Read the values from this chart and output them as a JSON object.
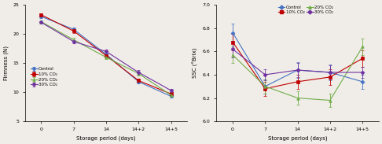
{
  "x_labels": [
    "0",
    "7",
    "14",
    "14+2",
    "14+5"
  ],
  "x_positions": [
    0,
    1,
    2,
    3,
    4
  ],
  "firmness": {
    "Control": {
      "y": [
        23.0,
        20.8,
        16.5,
        11.8,
        9.3
      ],
      "yerr": [
        0.25,
        0.3,
        0.25,
        0.35,
        0.25
      ]
    },
    "10% CO2": {
      "y": [
        23.3,
        20.5,
        16.3,
        12.0,
        9.7
      ],
      "yerr": [
        0.25,
        0.3,
        0.25,
        0.35,
        0.25
      ]
    },
    "20% CO2": {
      "y": [
        22.1,
        19.0,
        16.0,
        13.2,
        9.5
      ],
      "yerr": [
        0.25,
        0.3,
        0.25,
        0.35,
        0.25
      ]
    },
    "30% CO2": {
      "y": [
        22.0,
        18.7,
        17.0,
        13.4,
        10.3
      ],
      "yerr": [
        0.25,
        0.3,
        0.35,
        0.35,
        0.25
      ]
    }
  },
  "firmness_ylim": [
    5,
    25
  ],
  "firmness_yticks": [
    5,
    10,
    15,
    20,
    25
  ],
  "firmness_ylabel": "Firmness (N)",
  "ssc": {
    "Control": {
      "y": [
        6.76,
        6.3,
        6.44,
        6.42,
        6.34
      ],
      "yerr": [
        0.08,
        0.06,
        0.07,
        0.07,
        0.06
      ]
    },
    "10% CO2": {
      "y": [
        6.68,
        6.28,
        6.34,
        6.38,
        6.54
      ],
      "yerr": [
        0.07,
        0.06,
        0.06,
        0.07,
        0.07
      ]
    },
    "20% CO2": {
      "y": [
        6.57,
        6.3,
        6.2,
        6.18,
        6.64
      ],
      "yerr": [
        0.07,
        0.06,
        0.06,
        0.06,
        0.07
      ]
    },
    "30% CO2": {
      "y": [
        6.62,
        6.4,
        6.44,
        6.42,
        6.42
      ],
      "yerr": [
        0.07,
        0.05,
        0.06,
        0.06,
        0.05
      ]
    }
  },
  "ssc_ylim": [
    6.0,
    7.0
  ],
  "ssc_yticks": [
    6.0,
    6.2,
    6.4,
    6.6,
    6.8,
    7.0
  ],
  "ssc_ylabel": "SSC (°Brix)",
  "colors": {
    "Control": "#4472c4",
    "10% CO2": "#c00000",
    "20% CO2": "#70ad47",
    "30% CO2": "#7030a0"
  },
  "markers": {
    "Control": "D",
    "10% CO2": "s",
    "20% CO2": "^",
    "30% CO2": "D"
  },
  "xlabel": "Storage period (days)",
  "background_color": "#f0ede8"
}
